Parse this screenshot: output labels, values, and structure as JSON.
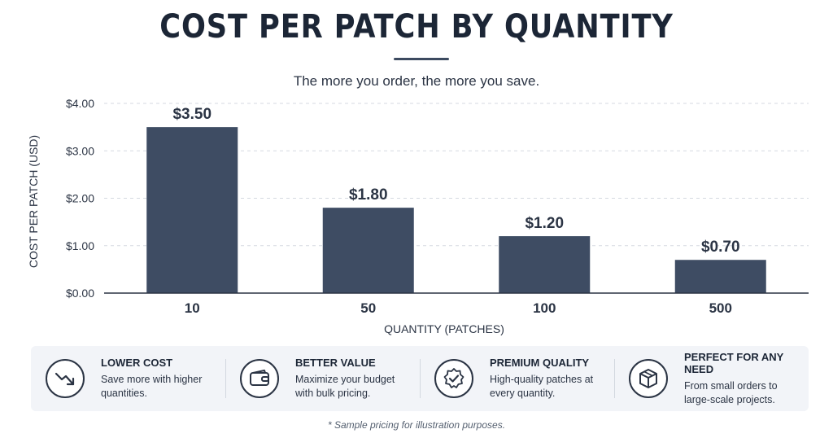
{
  "chart_data": {
    "type": "bar",
    "title": "COST PER PATCH BY QUANTITY",
    "subtitle": "The more you order, the more you save.",
    "xlabel": "QUANTITY (PATCHES)",
    "ylabel": "COST PER PATCH (USD)",
    "categories": [
      "10",
      "50",
      "100",
      "500"
    ],
    "values": [
      3.5,
      1.8,
      1.2,
      0.7
    ],
    "value_labels": [
      "$3.50",
      "$1.80",
      "$1.20",
      "$0.70"
    ],
    "yticks": [
      0,
      1,
      2,
      3,
      4
    ],
    "ytick_labels": [
      "$0.00",
      "$1.00",
      "$2.00",
      "$3.00",
      "$4.00"
    ],
    "ylim": [
      0,
      4
    ],
    "grid": true,
    "bar_color": "#3e4c63"
  },
  "features": [
    {
      "title": "LOWER COST",
      "desc": "Save more with higher quantities.",
      "icon": "trending-down-icon"
    },
    {
      "title": "BETTER VALUE",
      "desc": "Maximize your budget with bulk pricing.",
      "icon": "wallet-icon"
    },
    {
      "title": "PREMIUM QUALITY",
      "desc": "High-quality patches at every quantity.",
      "icon": "badge-check-icon"
    },
    {
      "title": "PERFECT FOR ANY NEED",
      "desc": "From small orders to large-scale projects.",
      "icon": "box-icon"
    }
  ],
  "footnote": "* Sample pricing for illustration purposes."
}
